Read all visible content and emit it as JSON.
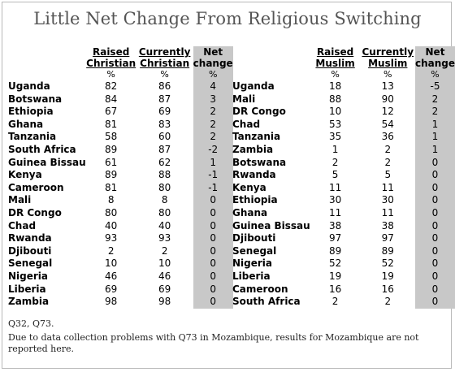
{
  "title": "Little Net Change From Religious Switching",
  "chart_data": [
    {
      "type": "table",
      "columns": [
        "",
        "Raised Christian",
        "Currently Christian",
        "Net change"
      ],
      "units": [
        "",
        "%",
        "%",
        "%"
      ],
      "rows": [
        [
          "Uganda",
          82,
          86,
          "4"
        ],
        [
          "Botswana",
          84,
          87,
          "3"
        ],
        [
          "Ethiopia",
          67,
          69,
          "2"
        ],
        [
          "Ghana",
          81,
          83,
          "2"
        ],
        [
          "Tanzania",
          58,
          60,
          "2"
        ],
        [
          "South Africa",
          89,
          87,
          "-2"
        ],
        [
          "Guinea Bissau",
          61,
          62,
          "1"
        ],
        [
          "Kenya",
          89,
          88,
          "-1"
        ],
        [
          "Cameroon",
          81,
          80,
          "-1"
        ],
        [
          "Mali",
          8,
          8,
          "0"
        ],
        [
          "DR Congo",
          80,
          80,
          "0"
        ],
        [
          "Chad",
          40,
          40,
          "0"
        ],
        [
          "Rwanda",
          93,
          93,
          "0"
        ],
        [
          "Djibouti",
          2,
          2,
          "0"
        ],
        [
          "Senegal",
          10,
          10,
          "0"
        ],
        [
          "Nigeria",
          46,
          46,
          "0"
        ],
        [
          "Liberia",
          69,
          69,
          "0"
        ],
        [
          "Zambia",
          98,
          98,
          "0"
        ]
      ]
    },
    {
      "type": "table",
      "columns": [
        "",
        "Raised Muslim",
        "Currently Muslim",
        "Net change"
      ],
      "units": [
        "",
        "%",
        "%",
        "%"
      ],
      "rows": [
        [
          "Uganda",
          18,
          13,
          "-5"
        ],
        [
          "Mali",
          88,
          90,
          "2"
        ],
        [
          "DR Congo",
          10,
          12,
          "2"
        ],
        [
          "Chad",
          53,
          54,
          "1"
        ],
        [
          "Tanzania",
          35,
          36,
          "1"
        ],
        [
          "Zambia",
          1,
          2,
          "1"
        ],
        [
          "Botswana",
          2,
          2,
          "0"
        ],
        [
          "Rwanda",
          5,
          5,
          "0"
        ],
        [
          "Kenya",
          11,
          11,
          "0"
        ],
        [
          "Ethiopia",
          30,
          30,
          "0"
        ],
        [
          "Ghana",
          11,
          11,
          "0"
        ],
        [
          "Guinea Bissau",
          38,
          38,
          "0"
        ],
        [
          "Djibouti",
          97,
          97,
          "0"
        ],
        [
          "Senegal",
          89,
          89,
          "0"
        ],
        [
          "Nigeria",
          52,
          52,
          "0"
        ],
        [
          "Liberia",
          19,
          19,
          "0"
        ],
        [
          "Cameroon",
          16,
          16,
          "0"
        ],
        [
          "South Africa",
          2,
          2,
          "0"
        ]
      ]
    }
  ],
  "notes": [
    "Q32, Q73.",
    "Due to data collection problems with Q73 in Mozambique, results for Mozambique are not reported here."
  ]
}
